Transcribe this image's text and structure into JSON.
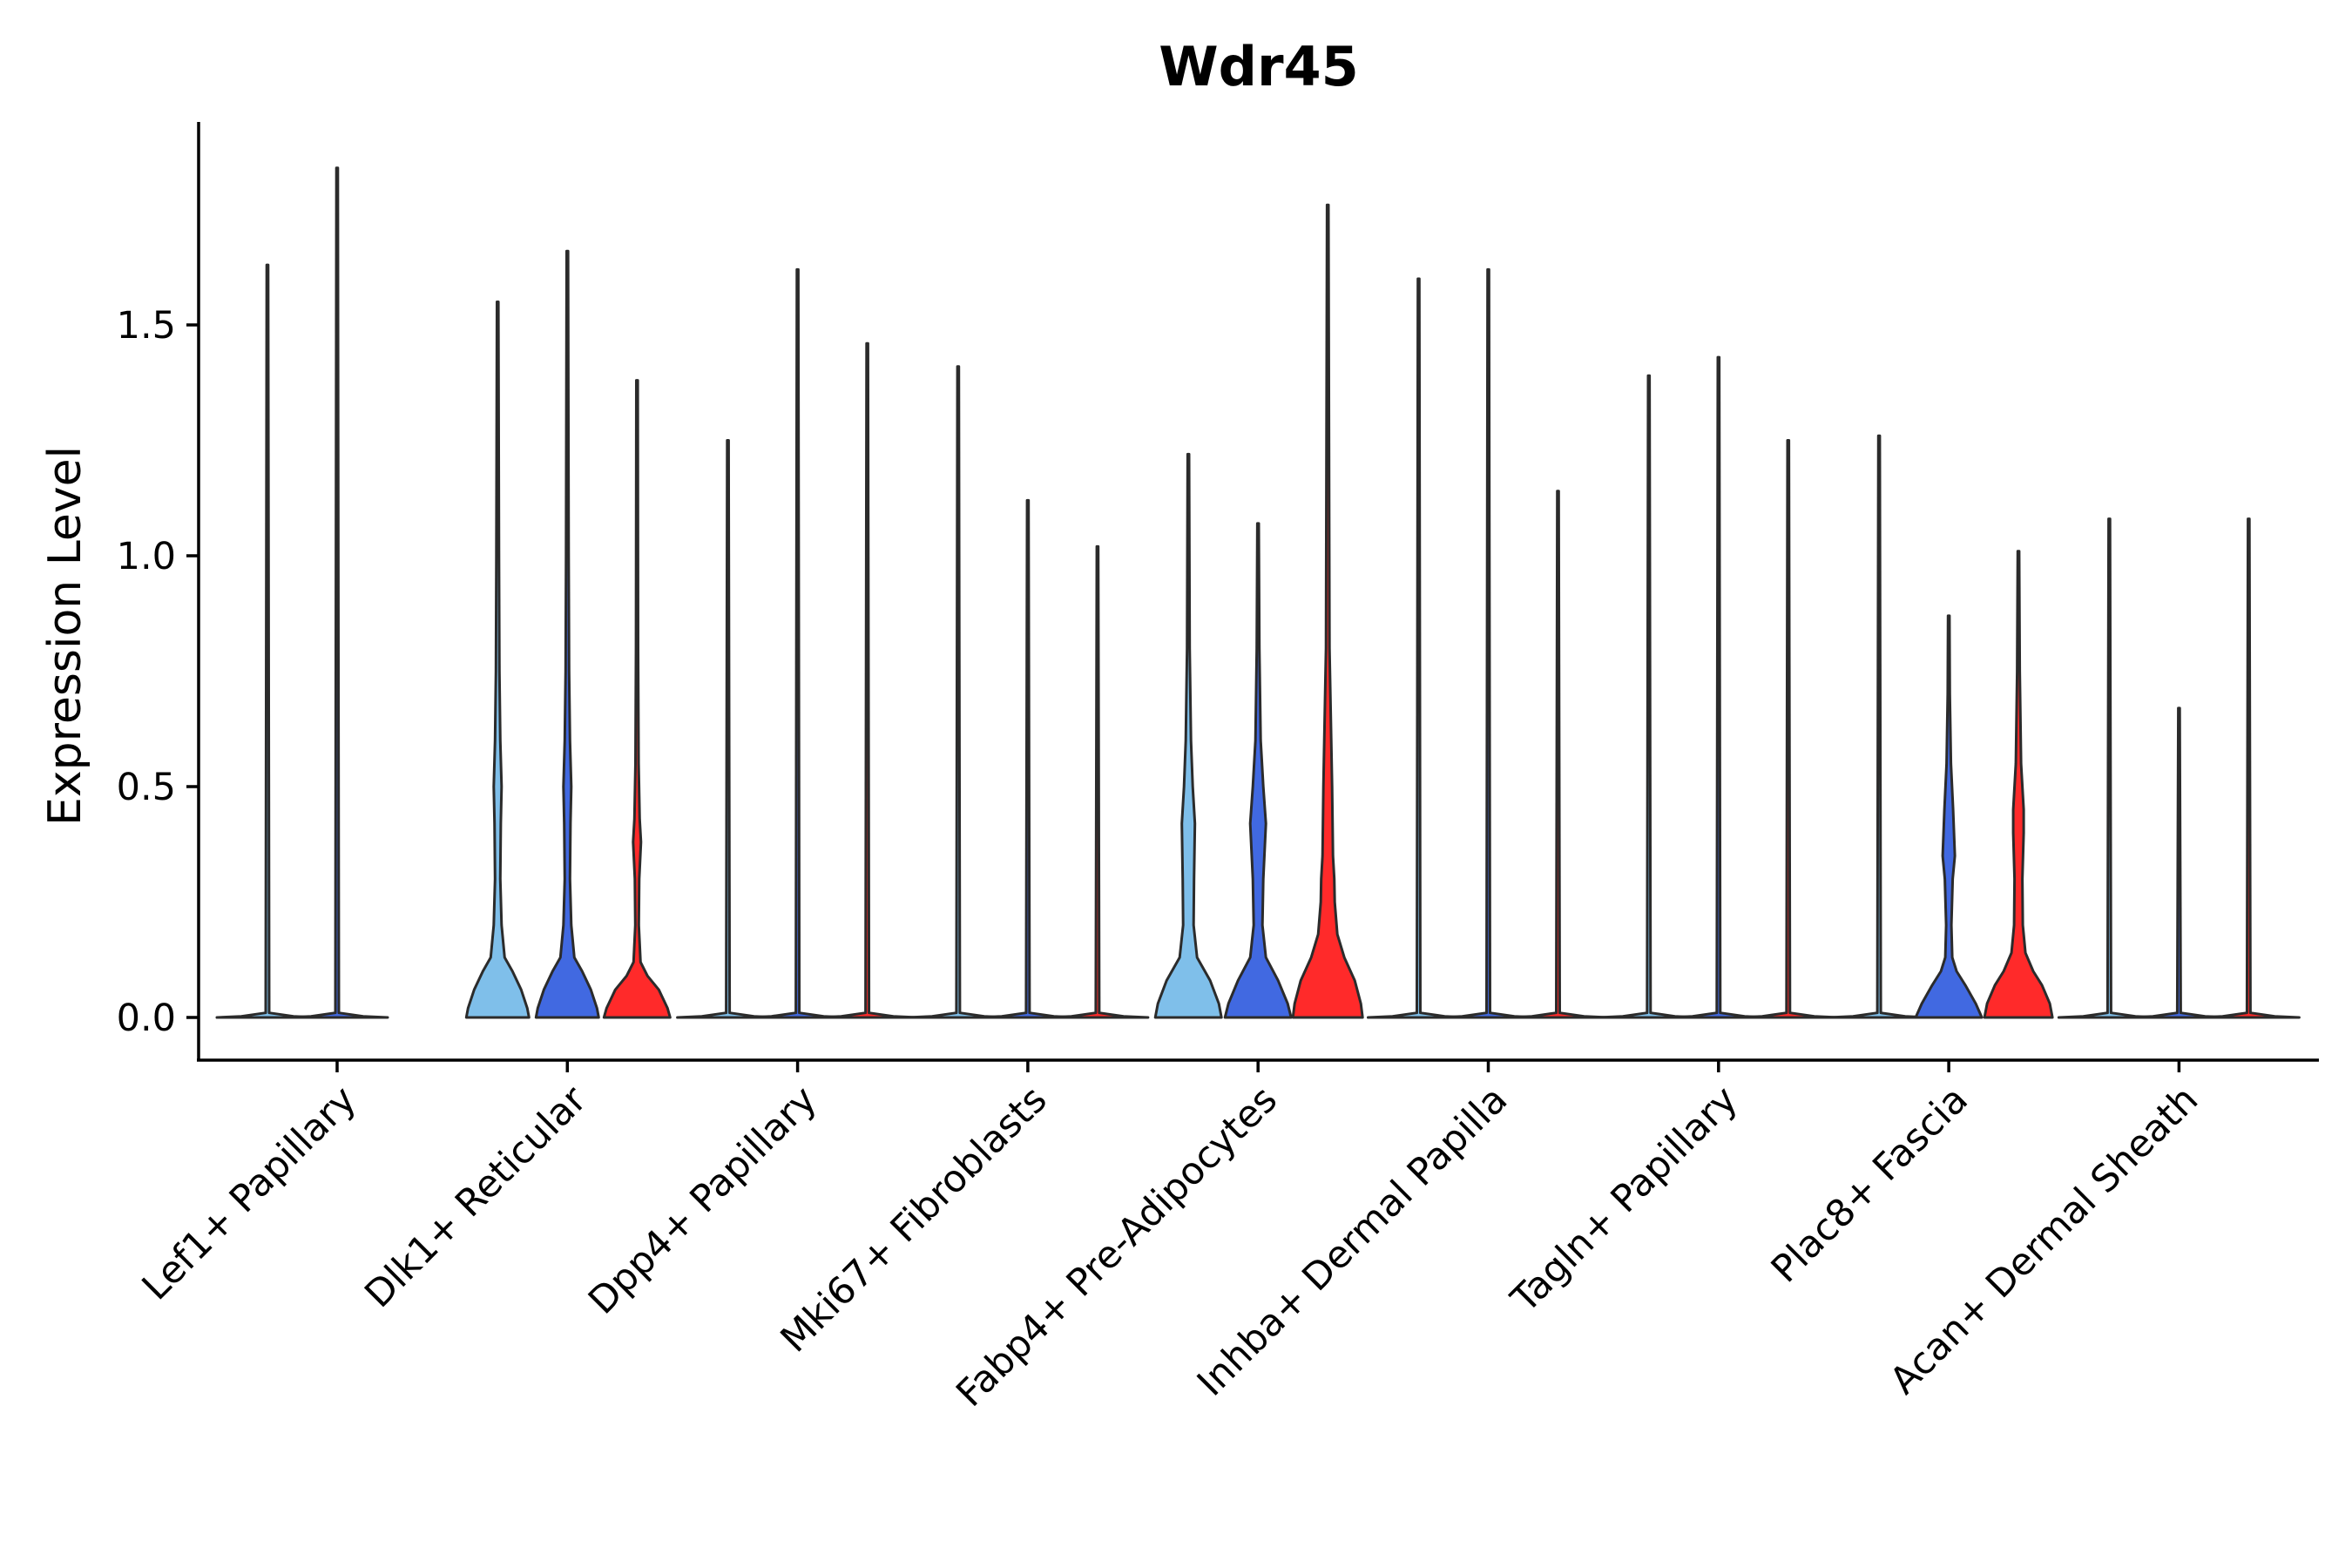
{
  "chart_data": {
    "type": "violin",
    "title": "Wdr45",
    "xlabel": "",
    "ylabel": "Expression Level",
    "ylim": [
      -0.09,
      1.94
    ],
    "yticks": [
      0.0,
      0.5,
      1.0,
      1.5
    ],
    "ytick_labels": [
      "0.0",
      "0.5",
      "1.0",
      "1.5"
    ],
    "group_colors": [
      "#7fbfea",
      "#4169e1",
      "#ff2a2a"
    ],
    "categories": [
      "Lef1+ Papillary",
      "Dlk1+ Reticular",
      "Dpp4+ Papillary",
      "Mki67+ Fibroblasts",
      "Fabp4+ Pre-Adipocytes",
      "Inhba+ Dermal Papilla",
      "Tagln+ Papillary",
      "Plac8+ Fascia",
      "Acan+ Dermal Sheath"
    ],
    "violins": [
      [
        {
          "max": 1.63,
          "shape": "flat"
        },
        {
          "max": 1.84,
          "shape": "flat"
        },
        null
      ],
      [
        {
          "max": 1.55,
          "shape": "dlk1"
        },
        {
          "max": 1.66,
          "shape": "dlk1"
        },
        {
          "max": 1.38,
          "shape": "dlk1_red"
        }
      ],
      [
        {
          "max": 1.25,
          "shape": "flat"
        },
        {
          "max": 1.62,
          "shape": "flat"
        },
        {
          "max": 1.46,
          "shape": "flat"
        }
      ],
      [
        {
          "max": 1.41,
          "shape": "flat"
        },
        {
          "max": 1.12,
          "shape": "flat"
        },
        {
          "max": 1.02,
          "shape": "flat"
        }
      ],
      [
        {
          "max": 1.22,
          "shape": "fabp4"
        },
        {
          "max": 1.07,
          "shape": "fabp4_blue"
        },
        {
          "max": 1.76,
          "shape": "fabp4_red"
        }
      ],
      [
        {
          "max": 1.6,
          "shape": "flat"
        },
        {
          "max": 1.62,
          "shape": "flat"
        },
        {
          "max": 1.14,
          "shape": "flat"
        }
      ],
      [
        {
          "max": 1.39,
          "shape": "flat"
        },
        {
          "max": 1.43,
          "shape": "flat"
        },
        {
          "max": 1.25,
          "shape": "flat"
        }
      ],
      [
        {
          "max": 1.26,
          "shape": "flat"
        },
        {
          "max": 0.87,
          "shape": "plac8_blue"
        },
        {
          "max": 1.01,
          "shape": "plac8_red"
        }
      ],
      [
        {
          "max": 1.08,
          "shape": "flat"
        },
        {
          "max": 0.67,
          "shape": "flat"
        },
        {
          "max": 1.08,
          "shape": "flat"
        }
      ]
    ]
  }
}
